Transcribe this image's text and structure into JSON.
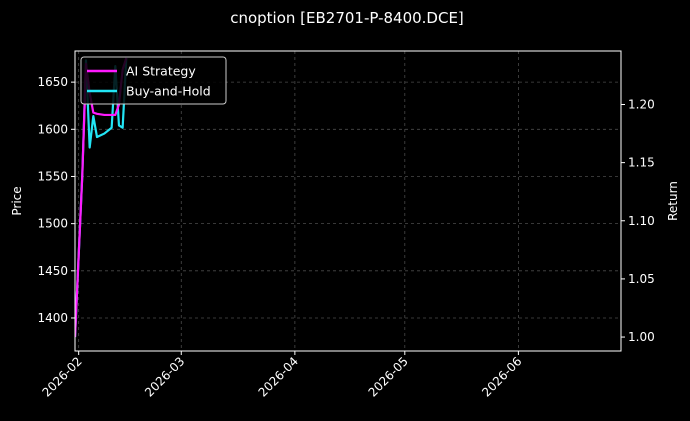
{
  "chart_data": {
    "type": "line",
    "title": "cnoption [EB2701-P-8400.DCE]",
    "ylabel_left": "Price",
    "ylabel_right": "Return",
    "x_ticks": [
      "2026-02",
      "2026-03",
      "2026-04",
      "2026-05",
      "2026-06"
    ],
    "x_range": [
      "2026-01-31",
      "2026-06-29"
    ],
    "y_left_ticks": [
      "1400",
      "1450",
      "1500",
      "1550",
      "1600",
      "1650"
    ],
    "y_left_range": [
      1365,
      1683
    ],
    "y_right_ticks": [
      "1.00",
      "1.05",
      "1.10",
      "1.15",
      "1.20"
    ],
    "y_right_range": [
      0.988,
      1.246
    ],
    "grid": true,
    "legend_position": "top-left",
    "series": [
      {
        "name": "AI Strategy",
        "color": "#ff1aff",
        "axis": "right",
        "points": [
          [
            "2026-01-31",
            1.0
          ],
          [
            "2026-02-02",
            1.14
          ],
          [
            "2026-02-03",
            1.235
          ],
          [
            "2026-02-04",
            1.21
          ],
          [
            "2026-02-05",
            1.193
          ],
          [
            "2026-02-06",
            1.192
          ],
          [
            "2026-02-08",
            1.191
          ],
          [
            "2026-02-11",
            1.191
          ],
          [
            "2026-02-12",
            1.2
          ],
          [
            "2026-02-13",
            1.23
          ],
          [
            "2026-02-14",
            1.24
          ]
        ]
      },
      {
        "name": "Buy-and-Hold",
        "color": "#22e5f5",
        "axis": "right",
        "points": [
          [
            "2026-01-31",
            1.0
          ],
          [
            "2026-02-02",
            1.14
          ],
          [
            "2026-02-03",
            1.238
          ],
          [
            "2026-02-04",
            1.163
          ],
          [
            "2026-02-05",
            1.19
          ],
          [
            "2026-02-06",
            1.172
          ],
          [
            "2026-02-08",
            1.175
          ],
          [
            "2026-02-10",
            1.18
          ],
          [
            "2026-02-11",
            1.233
          ],
          [
            "2026-02-12",
            1.182
          ],
          [
            "2026-02-13",
            1.18
          ],
          [
            "2026-02-14",
            1.24
          ]
        ]
      }
    ]
  }
}
